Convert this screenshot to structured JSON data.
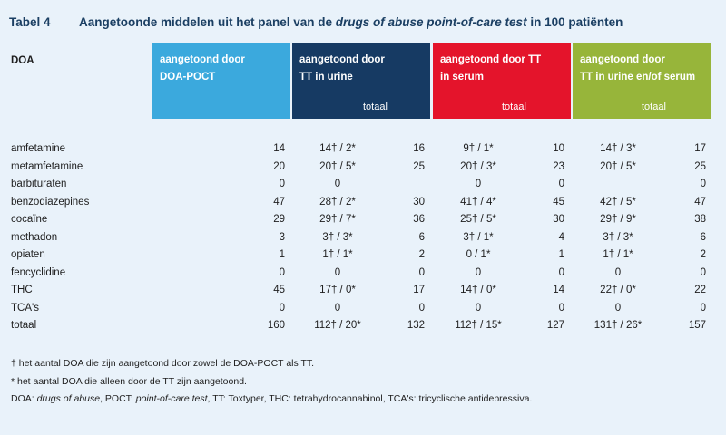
{
  "title": {
    "number": "Tabel 4",
    "text_before": "Aangetoonde middelen uit het panel van de ",
    "text_em": "drugs of abuse point-of-care test",
    "text_after": " in 100 patiënten"
  },
  "header": {
    "doa": "DOA",
    "col1": {
      "line1": "aangetoond door",
      "line2": "DOA-POCT",
      "color": "#3ba9dd"
    },
    "col2": {
      "line1": "aangetoond door",
      "line2": "TT in urine",
      "sub": "totaal",
      "color": "#163a63"
    },
    "col3": {
      "line1": "aangetoond door TT",
      "line2": "in serum",
      "sub": "totaal",
      "color": "#e4142b"
    },
    "col4": {
      "line1": "aangetoond door",
      "line2": "TT in urine en/of serum",
      "sub": "totaal",
      "color": "#97b53a"
    }
  },
  "rows": [
    {
      "name": "amfetamine",
      "c1": "14",
      "c2": "14† / 2*",
      "c3": "16",
      "c4": "9† / 1*",
      "c5": "10",
      "c6": "14† / 3*",
      "c7": "17"
    },
    {
      "name": "metamfetamine",
      "c1": "20",
      "c2": "20† / 5*",
      "c3": "25",
      "c4": "20† / 3*",
      "c5": "23",
      "c6": "20† / 5*",
      "c7": "25"
    },
    {
      "name": "barbituraten",
      "c1": "0",
      "c2": "0",
      "c3": "",
      "c4": "0",
      "c5": "0",
      "c6": "",
      "c7": "0"
    },
    {
      "name": "benzodiazepines",
      "c1": "47",
      "c2": "28† / 2*",
      "c3": "30",
      "c4": "41† / 4*",
      "c5": "45",
      "c6": "42† / 5*",
      "c7": "47"
    },
    {
      "name": "cocaïne",
      "c1": "29",
      "c2": "29† / 7*",
      "c3": "36",
      "c4": "25† / 5*",
      "c5": "30",
      "c6": "29† / 9*",
      "c7": "38"
    },
    {
      "name": "methadon",
      "c1": "3",
      "c2": "3† / 3*",
      "c3": "6",
      "c4": "3† / 1*",
      "c5": "4",
      "c6": "3† / 3*",
      "c7": "6"
    },
    {
      "name": "opiaten",
      "c1": "1",
      "c2": "1† / 1*",
      "c3": "2",
      "c4": "0 / 1*",
      "c5": "1",
      "c6": "1† / 1*",
      "c7": "2"
    },
    {
      "name": "fencyclidine",
      "c1": "0",
      "c2": "0",
      "c3": "0",
      "c4": "0",
      "c5": "0",
      "c6": "0",
      "c7": "0"
    },
    {
      "name": "THC",
      "c1": "45",
      "c2": "17† / 0*",
      "c3": "17",
      "c4": "14† / 0*",
      "c5": "14",
      "c6": "22† / 0*",
      "c7": "22"
    },
    {
      "name": "TCA's",
      "c1": "0",
      "c2": "0",
      "c3": "0",
      "c4": "0",
      "c5": "0",
      "c6": "0",
      "c7": "0"
    },
    {
      "name": "totaal",
      "c1": "160",
      "c2": "112† / 20*",
      "c3": "132",
      "c4": "112† / 15*",
      "c5": "127",
      "c6": "131† / 26*",
      "c7": "157"
    }
  ],
  "footnotes": {
    "dagger": "† het aantal DOA die zijn aangetoond door zowel de DOA-POCT als TT.",
    "star": "* het aantal DOA die alleen door de TT zijn aangetoond.",
    "abbr_1": "DOA: ",
    "abbr_1_em": "drugs of abuse",
    "abbr_2": ", POCT: ",
    "abbr_2_em": "point-of-care test",
    "abbr_3": ", TT: Toxtyper, THC: tetrahydrocannabinol, TCA's: tricyclische antidepressiva."
  }
}
